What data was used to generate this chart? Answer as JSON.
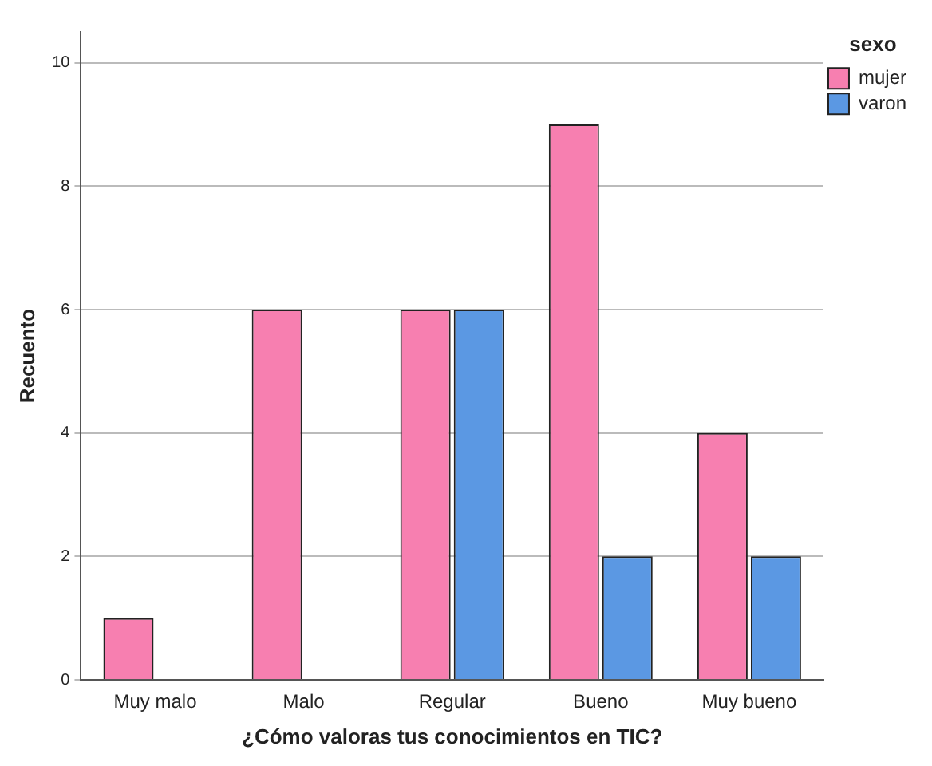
{
  "chart_data": {
    "type": "bar",
    "xlabel": "¿Cómo valoras tus conocimientos en TIC?",
    "ylabel": "Recuento",
    "legend_title": "sexo",
    "categories": [
      "Muy malo",
      "Malo",
      "Regular",
      "Bueno",
      "Muy bueno"
    ],
    "series": [
      {
        "name": "mujer",
        "color": "#f77fb0",
        "values": [
          1,
          6,
          6,
          9,
          4
        ]
      },
      {
        "name": "varon",
        "color": "#5b98e3",
        "values": [
          0,
          0,
          6,
          2,
          2
        ]
      }
    ],
    "ylim": [
      0,
      10.5
    ],
    "yticks": [
      0,
      2,
      4,
      6,
      8,
      10
    ],
    "grid": "y",
    "legend": "top right"
  }
}
